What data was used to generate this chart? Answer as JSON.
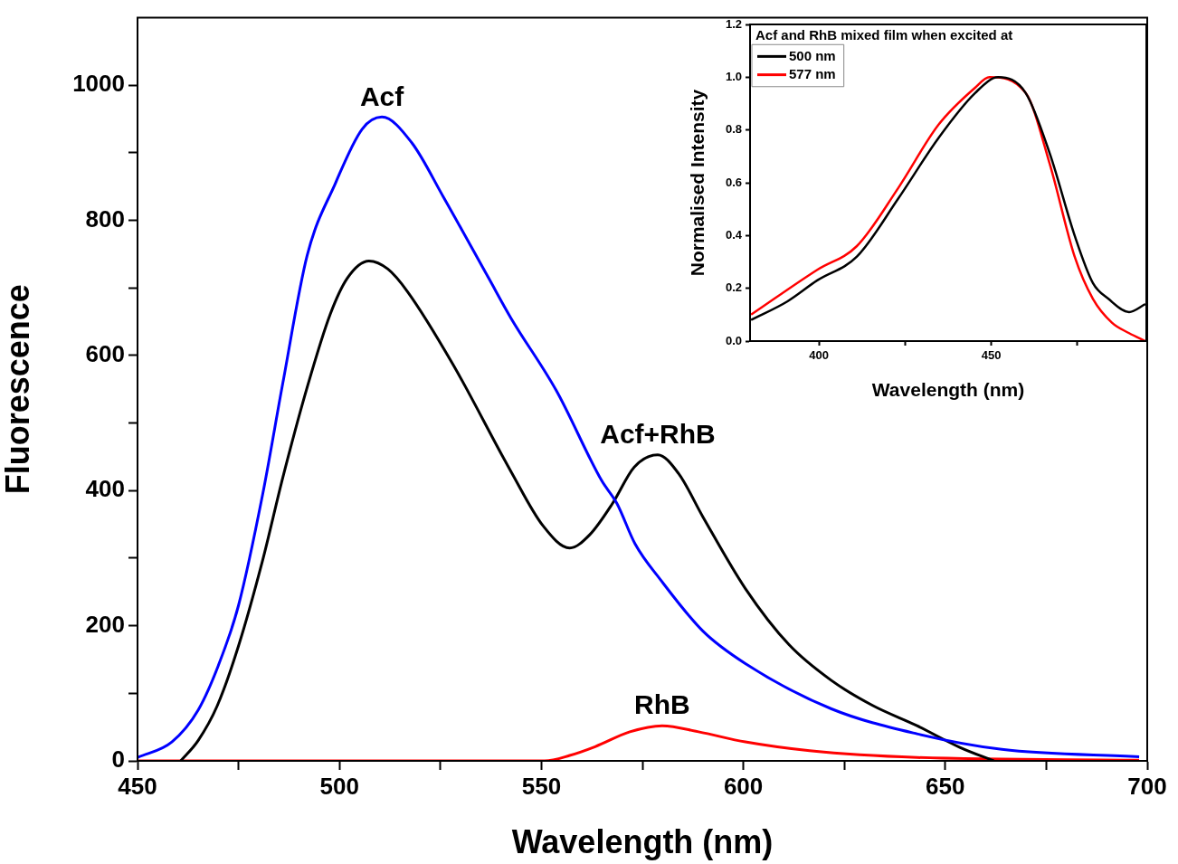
{
  "chart_data": [
    {
      "type": "line",
      "xlabel": "Wavelength (nm)",
      "ylabel": "Fluorescence",
      "xlim": [
        450,
        700
      ],
      "ylim": [
        0,
        1100
      ],
      "xticks": [
        450,
        {
          "value": 475,
          "label": null
        },
        500,
        {
          "value": 525,
          "label": null
        },
        550,
        {
          "value": 575,
          "label": null
        },
        600,
        {
          "value": 625,
          "label": null
        },
        650,
        {
          "value": 675,
          "label": null
        },
        700
      ],
      "yticks": [
        0,
        {
          "value": 100,
          "label": null
        },
        200,
        {
          "value": 300,
          "label": null
        },
        400,
        {
          "value": 500,
          "label": null
        },
        600,
        {
          "value": 700,
          "label": null
        },
        800,
        {
          "value": 900,
          "label": null
        },
        1000
      ],
      "grid": false,
      "legend": false,
      "marker": "none",
      "line_style": "solid",
      "series": [
        {
          "name": "Acf",
          "color": "#0000ff",
          "x": [
            450,
            458.5,
            465,
            470,
            475,
            481,
            486,
            492,
            499,
            505.6,
            510.5,
            517.9,
            525.7,
            536.9,
            542.5,
            553.7,
            564.9,
            568.7,
            573.2,
            579.5,
            590,
            600.5,
            621.8,
            643,
            664,
            698
          ],
          "values": [
            5,
            28,
            75,
            141,
            230,
            395,
            560,
            748,
            855,
            935,
            953,
            915,
            835,
            715,
            655,
            548,
            415,
            381,
            321,
            268,
            192,
            144,
            77,
            40,
            17,
            6
          ]
        },
        {
          "name": "Acf+RhB",
          "color": "#000000",
          "x": [
            460.7,
            465,
            469.7,
            475,
            480.9,
            486,
            492.1,
            497.7,
            502,
            507.3,
            512,
            516.8,
            528,
            542.5,
            550.4,
            557,
            562,
            567.6,
            573,
            578.8,
            584,
            590,
            600.5,
            611.3,
            621.8,
            632,
            643,
            653.6,
            662
          ],
          "values": [
            0,
            30,
            81,
            170,
            295,
            420,
            555,
            661,
            715,
            740,
            728,
            695,
            588,
            428,
            348,
            315,
            335,
            381,
            435,
            453,
            425,
            361,
            255,
            172,
            119,
            82,
            52,
            20,
            0
          ]
        },
        {
          "name": "RhB",
          "color": "#ff0000",
          "x": [
            450,
            550.8,
            557,
            563.3,
            571.9,
            579.9,
            588.9,
            600.5,
            616.4,
            643,
            698
          ],
          "values": [
            0,
            0,
            8,
            21,
            43,
            52,
            43,
            28,
            15,
            5,
            1
          ]
        }
      ]
    },
    {
      "type": "line",
      "xlabel": "Wavelength (nm)",
      "ylabel": "Normalised Intensity",
      "legend_title": "Acf and RhB mixed film when excited at",
      "xlim": [
        380,
        495
      ],
      "ylim": [
        0,
        1.2
      ],
      "xticks": [
        {
          "value": 400,
          "label": "400"
        },
        {
          "value": 425,
          "label": null
        },
        {
          "value": 450,
          "label": "450"
        },
        {
          "value": 475,
          "label": null
        }
      ],
      "yticks": [
        {
          "value": 0,
          "label": "0.0"
        },
        0.2,
        0.4,
        0.6,
        0.8,
        {
          "value": 1,
          "label": "1.0"
        },
        {
          "value": 1.2,
          "label": "1.2"
        }
      ],
      "grid": false,
      "legend": "top left",
      "marker": "none",
      "line_style": "solid",
      "series": [
        {
          "name": "500 nm",
          "color": "#000000",
          "x": [
            380.3,
            390.8,
            399.5,
            411,
            423,
            434.7,
            445.3,
            452,
            460,
            467,
            474.2,
            479.5,
            484,
            490,
            494.7
          ],
          "values": [
            0.08,
            0.15,
            0.23,
            0.32,
            0.54,
            0.77,
            0.94,
            1.0,
            0.94,
            0.71,
            0.4,
            0.22,
            0.16,
            0.11,
            0.14
          ]
        },
        {
          "name": "577 nm",
          "color": "#ff0000",
          "x": [
            380.3,
            399.5,
            411,
            423,
            434.7,
            445.3,
            449.5,
            460,
            467,
            474.2,
            479.5,
            485,
            490,
            494.7
          ],
          "values": [
            0.1,
            0.27,
            0.36,
            0.58,
            0.82,
            0.96,
            1.0,
            0.94,
            0.67,
            0.32,
            0.16,
            0.07,
            0.03,
            0.0
          ]
        }
      ]
    }
  ]
}
